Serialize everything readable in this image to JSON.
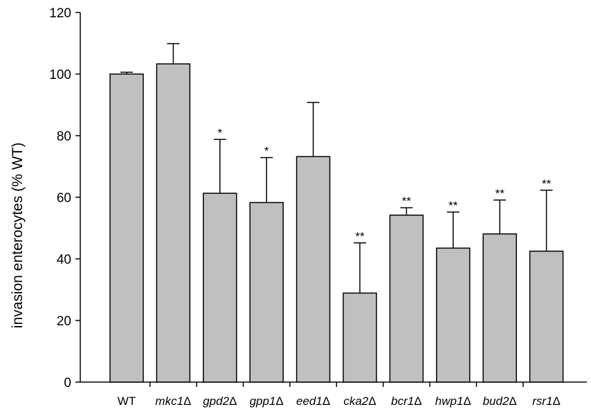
{
  "chart_data": {
    "type": "bar",
    "title": "",
    "xlabel": "",
    "ylabel": "invasion enterocytes (% WT)",
    "ylim": [
      0,
      120
    ],
    "yticks": [
      0,
      20,
      40,
      60,
      80,
      100,
      120
    ],
    "grid": false,
    "legend": "none",
    "bar_color": "#c0c0c0",
    "edge_color": "#000000",
    "categories": [
      {
        "prefix": "",
        "italic": "",
        "suffix": "WT"
      },
      {
        "prefix": "",
        "italic": "mkc1",
        "suffix": "Δ"
      },
      {
        "prefix": "",
        "italic": "gpd2",
        "suffix": "Δ"
      },
      {
        "prefix": "",
        "italic": "gpp1",
        "suffix": "Δ"
      },
      {
        "prefix": "",
        "italic": "eed1",
        "suffix": "Δ"
      },
      {
        "prefix": "",
        "italic": "cka2",
        "suffix": "Δ"
      },
      {
        "prefix": "",
        "italic": "bcr1",
        "suffix": "Δ"
      },
      {
        "prefix": "",
        "italic": "hwp1",
        "suffix": "Δ"
      },
      {
        "prefix": "",
        "italic": "bud2",
        "suffix": "Δ"
      },
      {
        "prefix": "",
        "italic": "rsr1",
        "suffix": "Δ"
      }
    ],
    "values": [
      100,
      103.3,
      61.3,
      58.3,
      73.2,
      28.9,
      54.2,
      43.5,
      48.1,
      42.5
    ],
    "error_upper": [
      0.6,
      6.6,
      17.5,
      14.6,
      17.6,
      16.3,
      2.4,
      11.7,
      11.0,
      19.8
    ],
    "significance": [
      "",
      "",
      "*",
      "*",
      "",
      "**",
      "**",
      "**",
      "**",
      "**"
    ]
  }
}
